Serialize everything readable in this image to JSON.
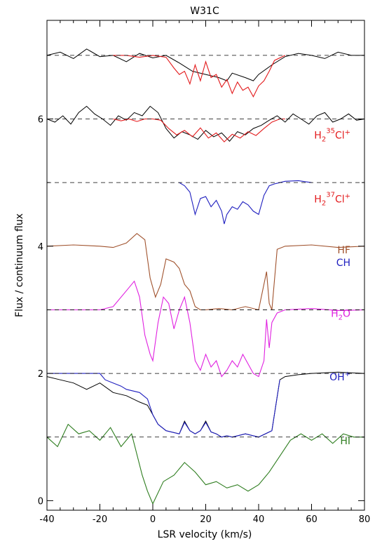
{
  "chart_data": {
    "type": "line",
    "title": "W31C",
    "xlabel": "LSR velocity (km/s)",
    "ylabel": "Flux / continuum flux",
    "xlim": [
      -40,
      80
    ],
    "ylim": [
      -0.15,
      7.55
    ],
    "x_ticks": [
      -40,
      -20,
      0,
      20,
      40,
      60,
      80
    ],
    "y_ticks": [
      0,
      2,
      4,
      6
    ],
    "grid": false,
    "series": [
      {
        "name": "H2 35Cl+",
        "label_parts": [
          "H",
          "2",
          "35",
          "Cl",
          "+"
        ],
        "color": "#e31a1c",
        "baseline": 7.0,
        "label_pos": [
          -2,
          5.8
        ],
        "observed": {
          "color": "#000000",
          "x": [
            -40,
            -35,
            -30,
            -25,
            -20,
            -15,
            -10,
            -5,
            0,
            5,
            10,
            15,
            20,
            25,
            28,
            30,
            35,
            38,
            40,
            45,
            50,
            55,
            60,
            65,
            70,
            75,
            80
          ],
          "y": [
            7.0,
            7.05,
            6.95,
            7.1,
            6.98,
            7.0,
            6.9,
            7.03,
            6.96,
            7.0,
            6.88,
            6.75,
            6.7,
            6.65,
            6.6,
            6.72,
            6.65,
            6.6,
            6.7,
            6.85,
            6.98,
            7.03,
            7.0,
            6.95,
            7.05,
            7.0,
            7.0
          ]
        },
        "model": {
          "x": [
            -15,
            -10,
            -5,
            0,
            5,
            8,
            10,
            12,
            14,
            16,
            18,
            20,
            22,
            24,
            26,
            28,
            30,
            32,
            34,
            36,
            38,
            40,
            42,
            44,
            46,
            50
          ],
          "y": [
            7.0,
            7.0,
            6.97,
            7.0,
            6.97,
            6.8,
            6.7,
            6.75,
            6.55,
            6.85,
            6.6,
            6.9,
            6.65,
            6.7,
            6.5,
            6.62,
            6.4,
            6.58,
            6.45,
            6.5,
            6.35,
            6.52,
            6.6,
            6.75,
            6.92,
            7.0
          ]
        }
      },
      {
        "name": "H2 37Cl+",
        "label_parts": [
          "H",
          "2",
          "37",
          "Cl",
          "+"
        ],
        "color": "#e31a1c",
        "baseline": 6.0,
        "label_pos": [
          -2,
          4.8
        ],
        "observed": {
          "color": "#000000",
          "x": [
            -40,
            -37,
            -34,
            -31,
            -28,
            -25,
            -22,
            -19,
            -16,
            -13,
            -10,
            -7,
            -4,
            -1,
            2,
            5,
            8,
            11,
            14,
            17,
            20,
            23,
            26,
            29,
            32,
            35,
            38,
            41,
            44,
            47,
            50,
            53,
            56,
            59,
            62,
            65,
            68,
            71,
            74,
            77,
            80
          ],
          "y": [
            6.0,
            5.95,
            6.05,
            5.92,
            6.1,
            6.2,
            6.08,
            6.0,
            5.9,
            6.05,
            5.98,
            6.1,
            6.05,
            6.2,
            6.1,
            5.85,
            5.7,
            5.8,
            5.75,
            5.68,
            5.82,
            5.72,
            5.78,
            5.65,
            5.8,
            5.75,
            5.85,
            5.9,
            5.98,
            6.05,
            5.95,
            6.08,
            6.0,
            5.92,
            6.05,
            6.1,
            5.95,
            6.0,
            6.08,
            5.98,
            6.0
          ]
        },
        "model": {
          "x": [
            -15,
            -12,
            -9,
            -6,
            -3,
            0,
            3,
            6,
            9,
            12,
            15,
            18,
            21,
            24,
            27,
            30,
            33,
            36,
            39,
            42,
            45,
            48,
            50
          ],
          "y": [
            6.0,
            5.97,
            6.0,
            5.96,
            6.0,
            6.0,
            5.98,
            5.85,
            5.75,
            5.82,
            5.72,
            5.86,
            5.7,
            5.78,
            5.64,
            5.76,
            5.7,
            5.8,
            5.74,
            5.85,
            5.95,
            6.0,
            6.0
          ]
        }
      },
      {
        "name": "CH",
        "color": "#1f1fbf",
        "baseline": 5.0,
        "label_pos": [
          -2,
          3.8
        ],
        "x": [
          10,
          12,
          14,
          16,
          18,
          20,
          22,
          24,
          26,
          27,
          28,
          30,
          32,
          34,
          36,
          38,
          40,
          42,
          44,
          46,
          48,
          50,
          55,
          60
        ],
        "y": [
          5.0,
          4.95,
          4.85,
          4.5,
          4.75,
          4.78,
          4.62,
          4.72,
          4.55,
          4.35,
          4.5,
          4.62,
          4.58,
          4.7,
          4.65,
          4.55,
          4.5,
          4.8,
          4.95,
          4.98,
          5.0,
          5.02,
          5.03,
          5.0
        ]
      },
      {
        "name": "HF",
        "color": "#a0522d",
        "baseline": 3.0,
        "label_pos": [
          -2,
          4.0
        ],
        "x": [
          -40,
          -30,
          -20,
          -15,
          -10,
          -6,
          -3,
          -1,
          1,
          3,
          5,
          8,
          10,
          12,
          14,
          16,
          18,
          20,
          25,
          30,
          35,
          40,
          43,
          44,
          45,
          47,
          50,
          60,
          70,
          80
        ],
        "y": [
          4.0,
          4.02,
          4.0,
          3.98,
          4.05,
          4.2,
          4.1,
          3.5,
          3.2,
          3.4,
          3.8,
          3.75,
          3.65,
          3.4,
          3.3,
          3.05,
          3.0,
          3.0,
          3.02,
          3.0,
          3.05,
          3.0,
          3.6,
          3.1,
          3.0,
          3.95,
          4.0,
          4.02,
          3.98,
          4.0
        ]
      },
      {
        "name": "H2O",
        "label_parts": [
          "H",
          "2",
          "",
          "O",
          ""
        ],
        "color": "#e020e0",
        "baseline": 3.0,
        "label_pos": [
          -2,
          3.0
        ],
        "x": [
          -40,
          -30,
          -20,
          -15,
          -10,
          -7,
          -5,
          -3,
          -1,
          0,
          2,
          4,
          6,
          8,
          10,
          12,
          14,
          16,
          18,
          20,
          22,
          24,
          26,
          28,
          30,
          32,
          34,
          36,
          38,
          40,
          42,
          43,
          44,
          45,
          47,
          50,
          60,
          70,
          80
        ],
        "y": [
          3.0,
          3.0,
          3.0,
          3.05,
          3.3,
          3.45,
          3.2,
          2.6,
          2.3,
          2.2,
          2.8,
          3.2,
          3.1,
          2.7,
          3.0,
          3.2,
          2.8,
          2.2,
          2.05,
          2.3,
          2.1,
          2.2,
          1.95,
          2.05,
          2.2,
          2.1,
          2.3,
          2.15,
          2.0,
          1.95,
          2.2,
          2.85,
          2.4,
          2.8,
          2.95,
          3.0,
          3.02,
          2.99,
          3.0
        ]
      },
      {
        "name": "OH+",
        "label_parts": [
          "OH",
          "",
          "",
          "",
          "+"
        ],
        "color": "#1f1fbf",
        "baseline": 2.0,
        "label_pos": [
          -2,
          2.0
        ],
        "observed": {
          "color": "#000000",
          "x": [
            -40,
            -35,
            -30,
            -25,
            -20,
            -15,
            -10,
            -5,
            -2,
            0,
            2,
            5,
            10,
            12,
            14,
            16,
            18,
            20,
            22,
            24,
            26,
            28,
            30,
            35,
            40,
            45,
            48,
            50,
            55,
            60,
            70,
            80
          ],
          "y": [
            1.95,
            1.9,
            1.85,
            1.75,
            1.85,
            1.7,
            1.65,
            1.55,
            1.5,
            1.35,
            1.2,
            1.1,
            1.05,
            1.25,
            1.1,
            1.05,
            1.1,
            1.25,
            1.08,
            1.05,
            1.0,
            1.02,
            1.0,
            1.05,
            1.0,
            1.1,
            1.9,
            1.95,
            1.98,
            2.0,
            2.02,
            2.0
          ]
        },
        "model": {
          "x": [
            -40,
            -20,
            -18,
            -15,
            -12,
            -10,
            -5,
            -2,
            0,
            2,
            5,
            10,
            12,
            14,
            16,
            18,
            20,
            22,
            24,
            26,
            28,
            30,
            35,
            40,
            45,
            48
          ],
          "y": [
            2.0,
            2.0,
            1.9,
            1.85,
            1.8,
            1.75,
            1.7,
            1.6,
            1.35,
            1.2,
            1.1,
            1.05,
            1.23,
            1.1,
            1.05,
            1.1,
            1.23,
            1.08,
            1.05,
            1.0,
            1.02,
            1.0,
            1.05,
            1.0,
            1.1,
            1.9
          ]
        }
      },
      {
        "name": "HI",
        "color": "#2e7d1f",
        "baseline": 1.0,
        "label_pos": [
          -2,
          1.0
        ],
        "x": [
          -40,
          -36,
          -32,
          -28,
          -24,
          -20,
          -16,
          -12,
          -8,
          -4,
          -2,
          0,
          4,
          8,
          12,
          16,
          20,
          24,
          28,
          32,
          36,
          40,
          44,
          48,
          52,
          56,
          60,
          64,
          68,
          72,
          76,
          80
        ],
        "y": [
          1.0,
          0.85,
          1.2,
          1.05,
          1.1,
          0.95,
          1.15,
          0.85,
          1.05,
          0.4,
          0.15,
          -0.05,
          0.3,
          0.4,
          0.6,
          0.45,
          0.25,
          0.3,
          0.2,
          0.25,
          0.15,
          0.25,
          0.45,
          0.7,
          0.95,
          1.05,
          0.95,
          1.05,
          0.9,
          1.05,
          1.0,
          1.0
        ]
      }
    ]
  }
}
